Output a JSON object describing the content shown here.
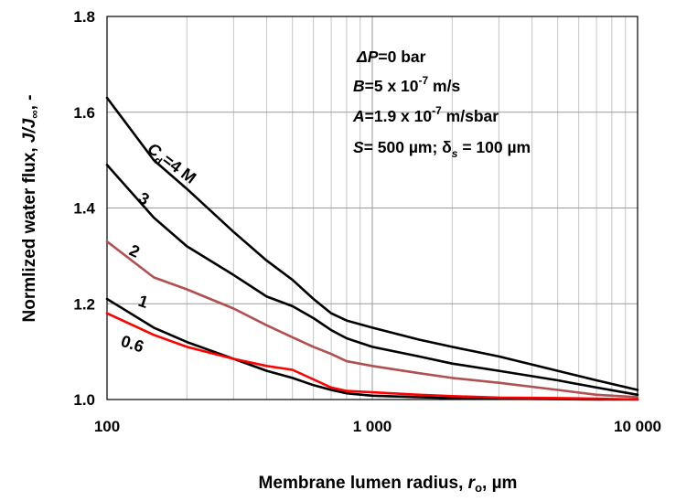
{
  "chart_data": {
    "type": "line",
    "title": "",
    "xlabel": "Membrane lumen radius, ",
    "xlabel_var": "r",
    "xlabel_sub": "o",
    "xlabel_unit": ", µm",
    "ylabel": "Normlized water flux,  ",
    "ylabel_var": "J/J",
    "ylabel_sub": "∞",
    "ylabel_suffix": ", -",
    "xscale": "log",
    "xlim": [
      100,
      10000
    ],
    "ylim": [
      1.0,
      1.8
    ],
    "x_ticks": [
      100,
      1000,
      10000
    ],
    "x_tick_labels": [
      "100",
      "1 000",
      "10 000"
    ],
    "y_ticks": [
      1.0,
      1.2,
      1.4,
      1.6,
      1.8
    ],
    "y_tick_labels": [
      "1.0",
      "1.2",
      "1.4",
      "1.6",
      "1.8"
    ],
    "grid": true,
    "annotations": {
      "dp_var": "ΔP",
      "dp_rest": "=0 bar",
      "b_var": "B",
      "b_rest": "=5 x 10",
      "b_exp": "-7",
      "b_unit": " m/s",
      "a_var": "A",
      "a_rest": "=1.9 x 10",
      "a_exp": "-7",
      "a_unit": " m/sbar",
      "s_var": "S",
      "s_rest": "= 500 µm; δ",
      "s_sub": "s",
      "s_tail": " = 100 µm"
    },
    "series": [
      {
        "name": "Cd=4 M",
        "label_main": "C",
        "label_sub": "d",
        "label_rest": "=4 M",
        "color": "#000000",
        "x": [
          100,
          150,
          200,
          300,
          400,
          500,
          600,
          700,
          800,
          1000,
          1500,
          2000,
          3000,
          5000,
          7000,
          10000
        ],
        "y": [
          1.63,
          1.5,
          1.44,
          1.35,
          1.29,
          1.25,
          1.21,
          1.18,
          1.165,
          1.15,
          1.125,
          1.11,
          1.09,
          1.06,
          1.04,
          1.02
        ]
      },
      {
        "name": "3",
        "label_main": "3",
        "color": "#000000",
        "x": [
          100,
          150,
          200,
          300,
          400,
          500,
          600,
          700,
          800,
          1000,
          1500,
          2000,
          3000,
          5000,
          7000,
          10000
        ],
        "y": [
          1.49,
          1.38,
          1.32,
          1.26,
          1.215,
          1.195,
          1.17,
          1.145,
          1.128,
          1.11,
          1.09,
          1.075,
          1.06,
          1.04,
          1.025,
          1.01
        ]
      },
      {
        "name": "2",
        "label_main": "2",
        "color": "#b05050",
        "x": [
          100,
          150,
          200,
          300,
          400,
          500,
          600,
          700,
          800,
          1000,
          1500,
          2000,
          3000,
          5000,
          7000,
          10000
        ],
        "y": [
          1.33,
          1.255,
          1.23,
          1.19,
          1.155,
          1.13,
          1.11,
          1.095,
          1.08,
          1.07,
          1.055,
          1.045,
          1.035,
          1.02,
          1.01,
          1.005
        ]
      },
      {
        "name": "1",
        "label_main": "1",
        "color": "#000000",
        "x": [
          100,
          150,
          200,
          300,
          400,
          500,
          600,
          700,
          800,
          1000,
          1500,
          2000,
          3000,
          5000,
          7000,
          10000
        ],
        "y": [
          1.21,
          1.15,
          1.12,
          1.085,
          1.06,
          1.045,
          1.03,
          1.02,
          1.013,
          1.008,
          1.005,
          1.003,
          1.002,
          1.001,
          1.0,
          1.0
        ]
      },
      {
        "name": "0.6",
        "label_main": "0.6",
        "color": "#ff0000",
        "x": [
          100,
          150,
          200,
          300,
          400,
          500,
          600,
          700,
          800,
          1000,
          1500,
          2000,
          3000,
          5000,
          7000,
          10000
        ],
        "y": [
          1.18,
          1.135,
          1.11,
          1.085,
          1.07,
          1.062,
          1.042,
          1.025,
          1.018,
          1.015,
          1.01,
          1.007,
          1.004,
          1.003,
          1.002,
          1.0
        ]
      }
    ]
  }
}
